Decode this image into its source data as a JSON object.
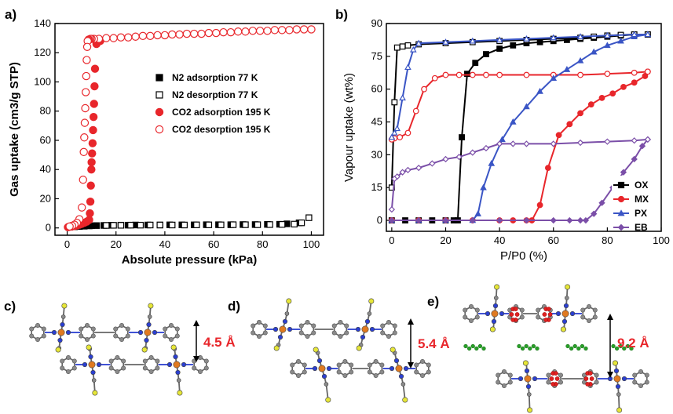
{
  "chart_data": [
    {
      "panel": "a)",
      "type": "scatter",
      "xlabel": "Absolute pressure (kPa)",
      "ylabel": "Gas uptake (cm3/g STP)",
      "xlim": [
        -5,
        105
      ],
      "ylim": [
        -5,
        140
      ],
      "xticks": [
        0,
        20,
        40,
        60,
        80,
        100
      ],
      "yticks": [
        0,
        20,
        40,
        60,
        80,
        100,
        120,
        140
      ],
      "grid": false,
      "legend": "center-right",
      "series": [
        {
          "name": "N2 adsorption 77 K",
          "color": "#000000",
          "marker": "square",
          "filled": true,
          "x": [
            1,
            3,
            5,
            7,
            9,
            10,
            12,
            15,
            18,
            22,
            25,
            28,
            33,
            38,
            42,
            47,
            52,
            57,
            62,
            67,
            72,
            77,
            82,
            87,
            90,
            95
          ],
          "y": [
            0.5,
            0.8,
            1,
            1.2,
            1.4,
            1.5,
            1.6,
            1.7,
            1.8,
            1.9,
            1.9,
            2,
            2,
            2,
            2.1,
            2.1,
            2.1,
            2.2,
            2.2,
            2.2,
            2.3,
            2.3,
            2.4,
            2.5,
            2.8,
            3.5
          ]
        },
        {
          "name": "N2 desorption 77 K",
          "color": "#000000",
          "marker": "square",
          "filled": false,
          "x": [
            99,
            96,
            93,
            88,
            83,
            78,
            73,
            68,
            63,
            58,
            53,
            48,
            43,
            38,
            34,
            30,
            26,
            22,
            19,
            16
          ],
          "y": [
            7,
            3.5,
            2.6,
            2.4,
            2.3,
            2.2,
            2.2,
            2.2,
            2.1,
            2.1,
            2.1,
            2,
            2,
            2,
            2,
            1.9,
            1.9,
            1.8,
            1.8,
            1.7
          ]
        },
        {
          "name": "CO2 adsorption 195 K",
          "color": "#e8262b",
          "marker": "circle",
          "filled": true,
          "x": [
            0.3,
            1,
            2,
            3,
            4,
            5,
            6,
            7,
            8,
            9,
            9.3,
            9.5,
            9.7,
            9.9,
            10,
            10.2,
            10.4,
            10.6,
            10.8,
            11,
            11.2,
            11.4,
            12,
            13.5
          ],
          "y": [
            0.5,
            0.8,
            1,
            1.3,
            1.7,
            2.2,
            2.8,
            3.5,
            4.3,
            5.5,
            10,
            18,
            29,
            40,
            45,
            51,
            58,
            67,
            76,
            85,
            97,
            109,
            126,
            128
          ]
        },
        {
          "name": "CO2 desorption 195 K",
          "color": "#e8262b",
          "marker": "circle",
          "filled": false,
          "x": [
            100,
            97,
            94,
            91,
            88,
            85,
            82,
            79,
            76,
            73,
            70,
            67,
            64,
            61,
            58,
            55,
            52,
            49,
            46,
            43,
            40,
            37,
            34,
            31,
            28,
            25,
            22,
            19,
            16,
            13,
            11,
            10,
            9.5,
            9,
            8.8,
            8.6,
            8.4,
            8.2,
            8,
            7.8,
            7.6,
            7.4,
            7.2,
            7,
            6.8,
            6.5,
            6,
            5,
            4,
            3,
            2,
            1
          ],
          "y": [
            136,
            136,
            136,
            135.5,
            135.5,
            135.5,
            135,
            135,
            135,
            134.5,
            134.5,
            134,
            134,
            133.5,
            133.5,
            133,
            133,
            133,
            132.5,
            132.5,
            132,
            132,
            131.5,
            131.5,
            131,
            130.5,
            130.5,
            130,
            130,
            129.5,
            129.5,
            129.5,
            129.5,
            129,
            129,
            128.5,
            128,
            124,
            115,
            104,
            93,
            82,
            72,
            62,
            52,
            33,
            14,
            6,
            3.5,
            2.2,
            1.5,
            1
          ]
        }
      ]
    },
    {
      "panel": "b)",
      "type": "line",
      "xlabel": "P/P0 (%)",
      "ylabel": "Vapour uptake (wt%)",
      "xlim": [
        -2,
        100
      ],
      "ylim": [
        -5,
        90
      ],
      "xticks": [
        0,
        20,
        40,
        60,
        80,
        100
      ],
      "yticks": [
        0,
        15,
        30,
        45,
        60,
        75,
        90
      ],
      "grid": false,
      "legend": "bottom-right",
      "series": [
        {
          "name": "OX",
          "color": "#000000",
          "marker": "square",
          "x": [
            0,
            5,
            10,
            15,
            20,
            23,
            24.5,
            26,
            28,
            31,
            35,
            40,
            45,
            50,
            55,
            60,
            65,
            70,
            75,
            80,
            85,
            90,
            95
          ],
          "y": [
            0,
            0,
            0,
            0,
            0,
            0,
            0,
            38,
            67,
            72,
            76,
            78.5,
            80,
            81,
            81.5,
            82,
            82.5,
            83,
            83.5,
            84,
            84.5,
            85,
            85
          ],
          "x_des": [
            95,
            90,
            85,
            80,
            75,
            70,
            60,
            50,
            40,
            30,
            20,
            10,
            6,
            4,
            2,
            1,
            0
          ],
          "y_des": [
            85,
            85,
            84.8,
            84.5,
            84,
            83.5,
            83,
            82.5,
            82,
            81.5,
            81,
            80.5,
            80,
            79.5,
            79,
            54,
            15
          ]
        },
        {
          "name": "MX",
          "color": "#e8262b",
          "marker": "circle",
          "x": [
            0,
            10,
            20,
            30,
            40,
            45,
            50,
            52,
            55,
            58,
            62,
            66,
            70,
            74,
            78,
            82,
            86,
            90,
            94,
            95
          ],
          "y": [
            0,
            0,
            0,
            0,
            0,
            0,
            0,
            0,
            7,
            24,
            39,
            44,
            49,
            53,
            56,
            58,
            61,
            63,
            66,
            68
          ],
          "x_des": [
            95,
            90,
            80,
            70,
            60,
            50,
            40,
            35,
            30,
            25,
            20,
            16,
            12,
            9,
            6,
            3,
            1,
            0
          ],
          "y_des": [
            68,
            67.5,
            67,
            66.5,
            66.5,
            66.5,
            66.5,
            66.5,
            66.5,
            66.5,
            66.5,
            65,
            60,
            50,
            40,
            38,
            37.5,
            37
          ]
        },
        {
          "name": "PX",
          "color": "#3a55c5",
          "marker": "triangle",
          "x": [
            0,
            10,
            20,
            30,
            32,
            34,
            37,
            41,
            45,
            50,
            55,
            60,
            65,
            70,
            75,
            80,
            85,
            90,
            95
          ],
          "y": [
            0,
            0,
            0,
            0,
            3,
            15,
            26,
            37,
            45,
            52,
            59,
            65,
            69,
            73,
            77,
            80,
            82,
            84,
            85
          ],
          "x_des": [
            95,
            90,
            80,
            70,
            60,
            50,
            40,
            30,
            20,
            10,
            8,
            6,
            4,
            2,
            1,
            0
          ],
          "y_des": [
            85,
            85,
            84.5,
            84,
            83.5,
            83,
            82.5,
            82,
            81.5,
            81,
            78,
            70,
            56,
            42,
            40,
            38
          ]
        },
        {
          "name": "EB",
          "color": "#7b4fa8",
          "marker": "diamond",
          "x": [
            0,
            10,
            20,
            30,
            40,
            50,
            60,
            66,
            70,
            72,
            75,
            78,
            82,
            86,
            90,
            93,
            95
          ],
          "y": [
            0,
            0,
            0,
            0,
            0,
            0,
            0,
            0,
            0,
            0,
            3,
            8,
            15,
            22,
            28,
            34,
            37
          ],
          "x_des": [
            95,
            90,
            80,
            70,
            60,
            50,
            45,
            40,
            35,
            30,
            25,
            20,
            15,
            10,
            6,
            4,
            2,
            1,
            0
          ],
          "y_des": [
            37,
            36.5,
            36,
            35.5,
            35,
            35,
            35,
            35,
            33,
            31,
            29,
            28,
            26,
            24,
            23,
            22,
            20,
            19,
            5
          ]
        }
      ]
    }
  ],
  "panels": {
    "a": {
      "letter": "a)"
    },
    "b": {
      "letter": "b)"
    },
    "c": {
      "letter": "c)",
      "distance": "4.5 Å"
    },
    "d": {
      "letter": "d)",
      "distance": "5.4 Å"
    },
    "e": {
      "letter": "e)",
      "distance": "9.2 Å"
    }
  },
  "colors": {
    "carbon": "#8a8a8a",
    "nitrogen": "#2b3fd0",
    "metal": "#e07a20",
    "sulfur": "#e6e638",
    "guest_red": "#e02020",
    "guest_green": "#28a028",
    "annotation": "#e8262b"
  }
}
